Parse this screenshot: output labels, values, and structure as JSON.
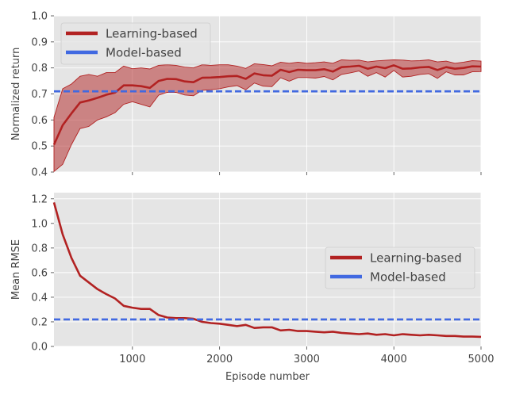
{
  "chart_data": [
    {
      "type": "line",
      "title": "",
      "xlabel": "",
      "ylabel": "Normalized return",
      "xlim": [
        100,
        5000
      ],
      "ylim": [
        0.4,
        1.0
      ],
      "yticks": [
        0.4,
        0.5,
        0.6,
        0.7,
        0.8,
        0.9,
        1.0
      ],
      "yticklabels": [
        "0.4",
        "0.5",
        "0.6",
        "0.7",
        "0.8",
        "0.9",
        "1.0"
      ],
      "grid": true,
      "legend_position": "top-left",
      "series": [
        {
          "name": "Learning-based",
          "color": "#b22222",
          "style": "solid",
          "x": [
            100,
            200,
            300,
            400,
            500,
            600,
            700,
            800,
            900,
            1000,
            1100,
            1200,
            1300,
            1400,
            1500,
            1600,
            1700,
            1800,
            1900,
            2000,
            2100,
            2200,
            2300,
            2400,
            2500,
            2600,
            2700,
            2800,
            2900,
            3000,
            3100,
            3200,
            3300,
            3400,
            3500,
            3600,
            3700,
            3800,
            3900,
            4000,
            4100,
            4200,
            4300,
            4400,
            4500,
            4600,
            4700,
            4800,
            4900,
            5000
          ],
          "y": [
            0.505,
            0.58,
            0.625,
            0.667,
            0.675,
            0.685,
            0.697,
            0.705,
            0.733,
            0.733,
            0.73,
            0.723,
            0.75,
            0.758,
            0.757,
            0.748,
            0.745,
            0.762,
            0.763,
            0.765,
            0.768,
            0.769,
            0.758,
            0.779,
            0.772,
            0.77,
            0.793,
            0.784,
            0.793,
            0.791,
            0.791,
            0.795,
            0.786,
            0.803,
            0.805,
            0.808,
            0.797,
            0.805,
            0.799,
            0.81,
            0.797,
            0.798,
            0.802,
            0.804,
            0.792,
            0.803,
            0.797,
            0.8,
            0.806,
            0.805
          ],
          "band_lower": [
            0.402,
            0.43,
            0.505,
            0.567,
            0.575,
            0.6,
            0.612,
            0.628,
            0.66,
            0.67,
            0.66,
            0.65,
            0.695,
            0.706,
            0.706,
            0.696,
            0.693,
            0.714,
            0.716,
            0.72,
            0.727,
            0.732,
            0.716,
            0.742,
            0.73,
            0.728,
            0.762,
            0.749,
            0.763,
            0.763,
            0.761,
            0.767,
            0.754,
            0.775,
            0.781,
            0.788,
            0.768,
            0.782,
            0.765,
            0.79,
            0.765,
            0.768,
            0.775,
            0.778,
            0.76,
            0.785,
            0.773,
            0.773,
            0.785,
            0.786
          ],
          "band_upper": [
            0.61,
            0.72,
            0.738,
            0.768,
            0.775,
            0.768,
            0.782,
            0.782,
            0.807,
            0.797,
            0.8,
            0.796,
            0.81,
            0.812,
            0.81,
            0.803,
            0.8,
            0.812,
            0.81,
            0.812,
            0.812,
            0.807,
            0.798,
            0.816,
            0.813,
            0.808,
            0.822,
            0.818,
            0.822,
            0.818,
            0.82,
            0.823,
            0.818,
            0.831,
            0.829,
            0.83,
            0.823,
            0.827,
            0.829,
            0.831,
            0.83,
            0.827,
            0.828,
            0.831,
            0.823,
            0.826,
            0.818,
            0.822,
            0.828,
            0.826
          ]
        },
        {
          "name": "Model-based",
          "color": "#4169e1",
          "style": "dashed",
          "x": [
            100,
            5000
          ],
          "y": [
            0.71,
            0.71
          ]
        }
      ]
    },
    {
      "type": "line",
      "title": "",
      "xlabel": "Episode number",
      "ylabel": "Mean RMSE",
      "xlim": [
        100,
        5000
      ],
      "ylim": [
        0.0,
        1.25
      ],
      "xticks": [
        1000,
        2000,
        3000,
        4000,
        5000
      ],
      "xticklabels": [
        "1000",
        "2000",
        "3000",
        "4000",
        "5000"
      ],
      "yticks": [
        0.0,
        0.2,
        0.4,
        0.6,
        0.8,
        1.0,
        1.2
      ],
      "yticklabels": [
        "0.0",
        "0.2",
        "0.4",
        "0.6",
        "0.8",
        "1.0",
        "1.2"
      ],
      "grid": true,
      "legend_position": "center-right",
      "series": [
        {
          "name": "Learning-based",
          "color": "#b22222",
          "style": "solid",
          "x": [
            100,
            200,
            300,
            400,
            500,
            600,
            700,
            800,
            900,
            1000,
            1100,
            1200,
            1300,
            1400,
            1500,
            1600,
            1700,
            1800,
            1900,
            2000,
            2100,
            2200,
            2300,
            2400,
            2500,
            2600,
            2700,
            2800,
            2900,
            3000,
            3100,
            3200,
            3300,
            3400,
            3500,
            3600,
            3700,
            3800,
            3900,
            4000,
            4100,
            4200,
            4300,
            4400,
            4500,
            4600,
            4700,
            4800,
            4900,
            5000
          ],
          "y": [
            1.17,
            0.91,
            0.72,
            0.575,
            0.52,
            0.465,
            0.425,
            0.39,
            0.33,
            0.315,
            0.305,
            0.305,
            0.255,
            0.235,
            0.23,
            0.23,
            0.225,
            0.2,
            0.19,
            0.185,
            0.175,
            0.165,
            0.175,
            0.15,
            0.155,
            0.155,
            0.13,
            0.135,
            0.125,
            0.125,
            0.12,
            0.115,
            0.12,
            0.11,
            0.105,
            0.1,
            0.105,
            0.095,
            0.1,
            0.09,
            0.1,
            0.095,
            0.09,
            0.095,
            0.09,
            0.085,
            0.085,
            0.08,
            0.08,
            0.078
          ]
        },
        {
          "name": "Model-based",
          "color": "#4169e1",
          "style": "dashed",
          "x": [
            100,
            5000
          ],
          "y": [
            0.22,
            0.22
          ]
        }
      ]
    }
  ]
}
